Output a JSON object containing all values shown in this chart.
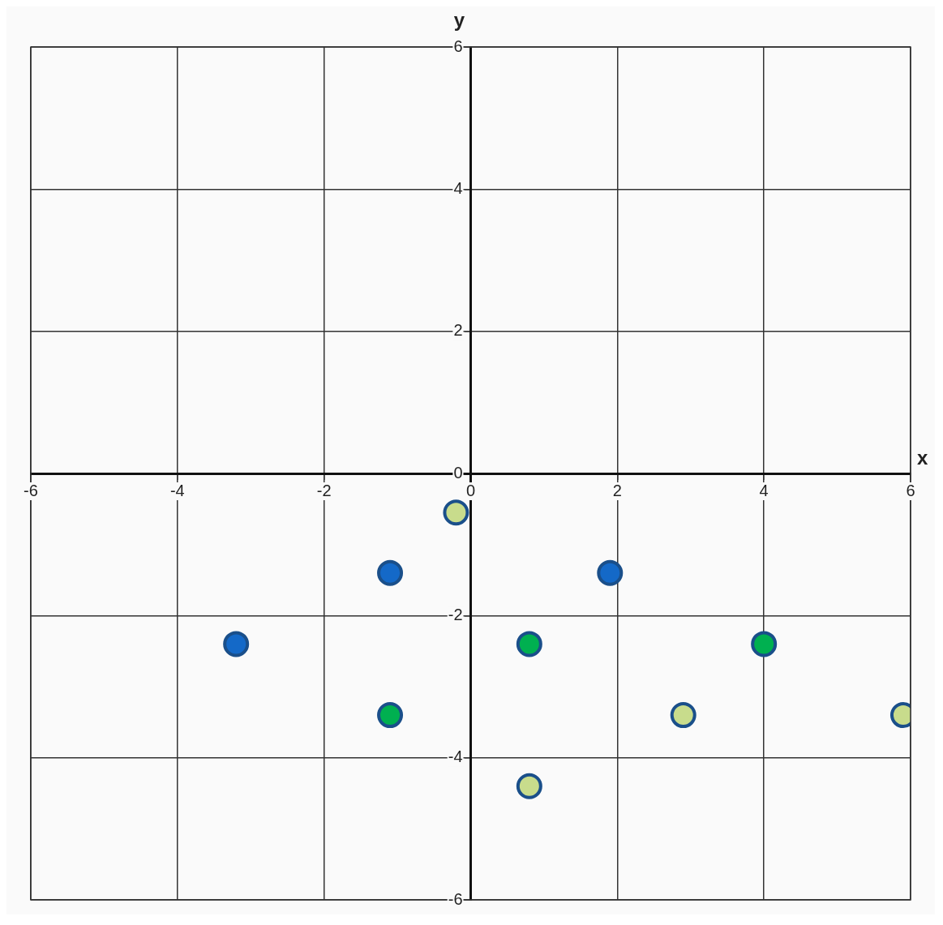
{
  "chart_data": {
    "type": "scatter",
    "xlabel": "x",
    "ylabel": "y",
    "series": [
      {
        "color": "#1469c8",
        "x": [
          -3.2,
          -1.1,
          1.9
        ],
        "values": [
          -2.4,
          -1.4,
          -1.4
        ]
      },
      {
        "color": "#00b050",
        "x": [
          0.8,
          4,
          -1.1
        ],
        "values": [
          -2.4,
          -2.4,
          -3.4
        ]
      },
      {
        "color": "#c8dc8c",
        "x": [
          -0.2,
          0.8,
          2.9,
          5.9
        ],
        "values": [
          -0.55,
          -4.4,
          -3.4,
          -3.4
        ]
      }
    ],
    "xlim": [
      -6,
      6
    ],
    "ylim": [
      -6,
      6
    ],
    "xticks": [
      -6,
      -4,
      -2,
      0,
      2,
      4,
      6
    ],
    "yticks": [
      -6,
      -4,
      -2,
      0,
      2,
      4,
      6
    ],
    "grid": true,
    "legend": false,
    "marker": "circle"
  }
}
